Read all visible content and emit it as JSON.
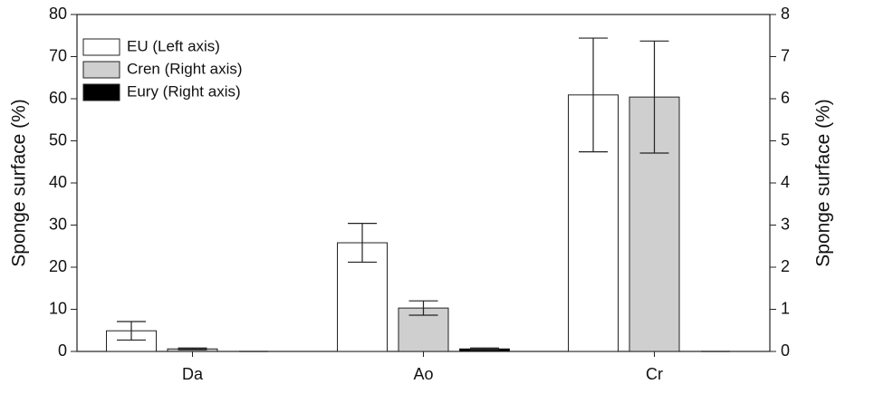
{
  "chart_data": {
    "type": "bar",
    "categories": [
      "Da",
      "Ao",
      "Cr"
    ],
    "y_label": "Sponge surface (%)",
    "y2_label": "Sponge surface (%)",
    "ylim": [
      0,
      80
    ],
    "yticks": [
      0,
      10,
      20,
      30,
      40,
      50,
      60,
      70,
      80
    ],
    "y2lim": [
      0,
      8
    ],
    "y2ticks": [
      0,
      1,
      2,
      3,
      4,
      5,
      6,
      7,
      8
    ],
    "legend": "upper left",
    "series": [
      {
        "name": "EU (Left axis)",
        "color": "#ffffff",
        "values": [
          4.9,
          25.8,
          60.9
        ],
        "errors": [
          2.2,
          4.6,
          13.5
        ]
      },
      {
        "name": "Cren (Right axis)",
        "color": "#cfcfcf",
        "axis": "y2",
        "values": [
          0.06,
          1.03,
          6.04
        ],
        "errors": [
          0.02,
          0.17,
          1.33
        ]
      },
      {
        "name": "Eury (Right axis)",
        "color": "#000000",
        "axis": "y2",
        "values": [
          0,
          0.06,
          0
        ],
        "errors": [
          0,
          0.02,
          0
        ]
      }
    ]
  }
}
